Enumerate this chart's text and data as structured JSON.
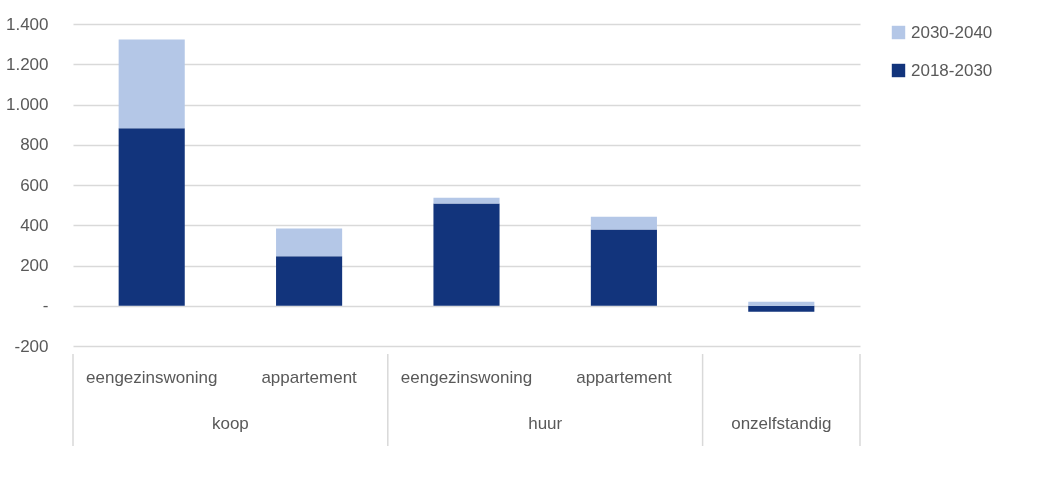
{
  "chart_data": {
    "type": "bar",
    "stacked": true,
    "categories": [
      "eengezinswoning",
      "appartement",
      "eengezinswoning",
      "appartement",
      null
    ],
    "annotations": [
      "koop",
      "huur",
      "onzelfstandig"
    ],
    "series": [
      {
        "name": "2018-2030",
        "color": "#12347c",
        "values": [
          882,
          246,
          508,
          379,
          -30
        ]
      },
      {
        "name": "2030-2040",
        "color": "#b4c7e7",
        "values": [
          441,
          138,
          29,
          63,
          20
        ]
      }
    ],
    "ylim": [
      -200,
      1400
    ],
    "yticks": [
      -200,
      {
        "value": 0,
        "label": "-"
      },
      200,
      400,
      600,
      800,
      {
        "value": 1000,
        "label": "1.000"
      },
      {
        "value": 1200,
        "label": "1.200"
      },
      {
        "value": 1400,
        "label": "1.400"
      }
    ],
    "grid": "y",
    "legend": "right"
  }
}
